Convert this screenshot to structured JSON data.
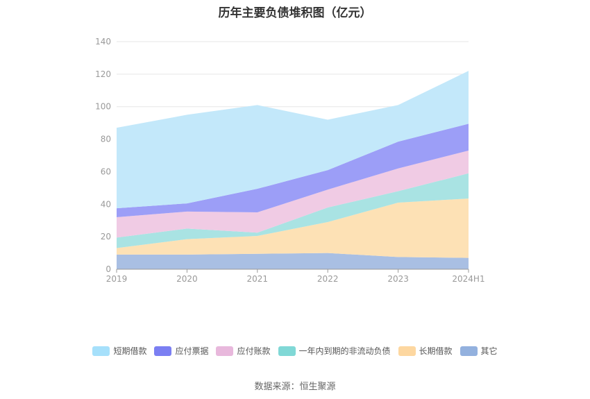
{
  "title": "历年主要负债堆积图（亿元）",
  "source": "数据来源：恒生聚源",
  "chart_data": {
    "type": "area",
    "stacked": true,
    "categories": [
      "2019",
      "2020",
      "2021",
      "2022",
      "2023",
      "2024H1"
    ],
    "ylim": [
      0,
      140
    ],
    "yticks": [
      0,
      20,
      40,
      60,
      80,
      100,
      120,
      140
    ],
    "grid": true,
    "legend_position": "bottom",
    "series": [
      {
        "name": "其它",
        "color": "#a9bfe3",
        "values": [
          9,
          9,
          9.5,
          10,
          7.5,
          7
        ]
      },
      {
        "name": "长期借款",
        "color": "#fde1b5",
        "values": [
          4,
          9.5,
          11,
          19,
          33.5,
          36.5
        ]
      },
      {
        "name": "一年内到期的非流动负债",
        "color": "#a9e3e3",
        "values": [
          6.5,
          6.5,
          2,
          9,
          7,
          15.5
        ]
      },
      {
        "name": "应付账款",
        "color": "#f0cbe4",
        "values": [
          12.5,
          10.5,
          12.5,
          11,
          14,
          14
        ]
      },
      {
        "name": "应付票据",
        "color": "#9c9ef7",
        "values": [
          5.5,
          5,
          14.5,
          12,
          16.5,
          16.5
        ]
      },
      {
        "name": "短期借款",
        "color": "#c3e8fa",
        "values": [
          49.5,
          54.5,
          51.5,
          31,
          22.5,
          32.5
        ]
      }
    ],
    "legend_order": [
      "短期借款",
      "应付票据",
      "应付账款",
      "一年内到期的非流动负债",
      "长期借款",
      "其它"
    ],
    "legend_colors": {
      "短期借款": "#a6e0fb",
      "应付票据": "#7b7ff2",
      "应付账款": "#e8b8dc",
      "一年内到期的非流动负债": "#80d8d6",
      "长期借款": "#fdd7a0",
      "其它": "#93b1de"
    }
  }
}
